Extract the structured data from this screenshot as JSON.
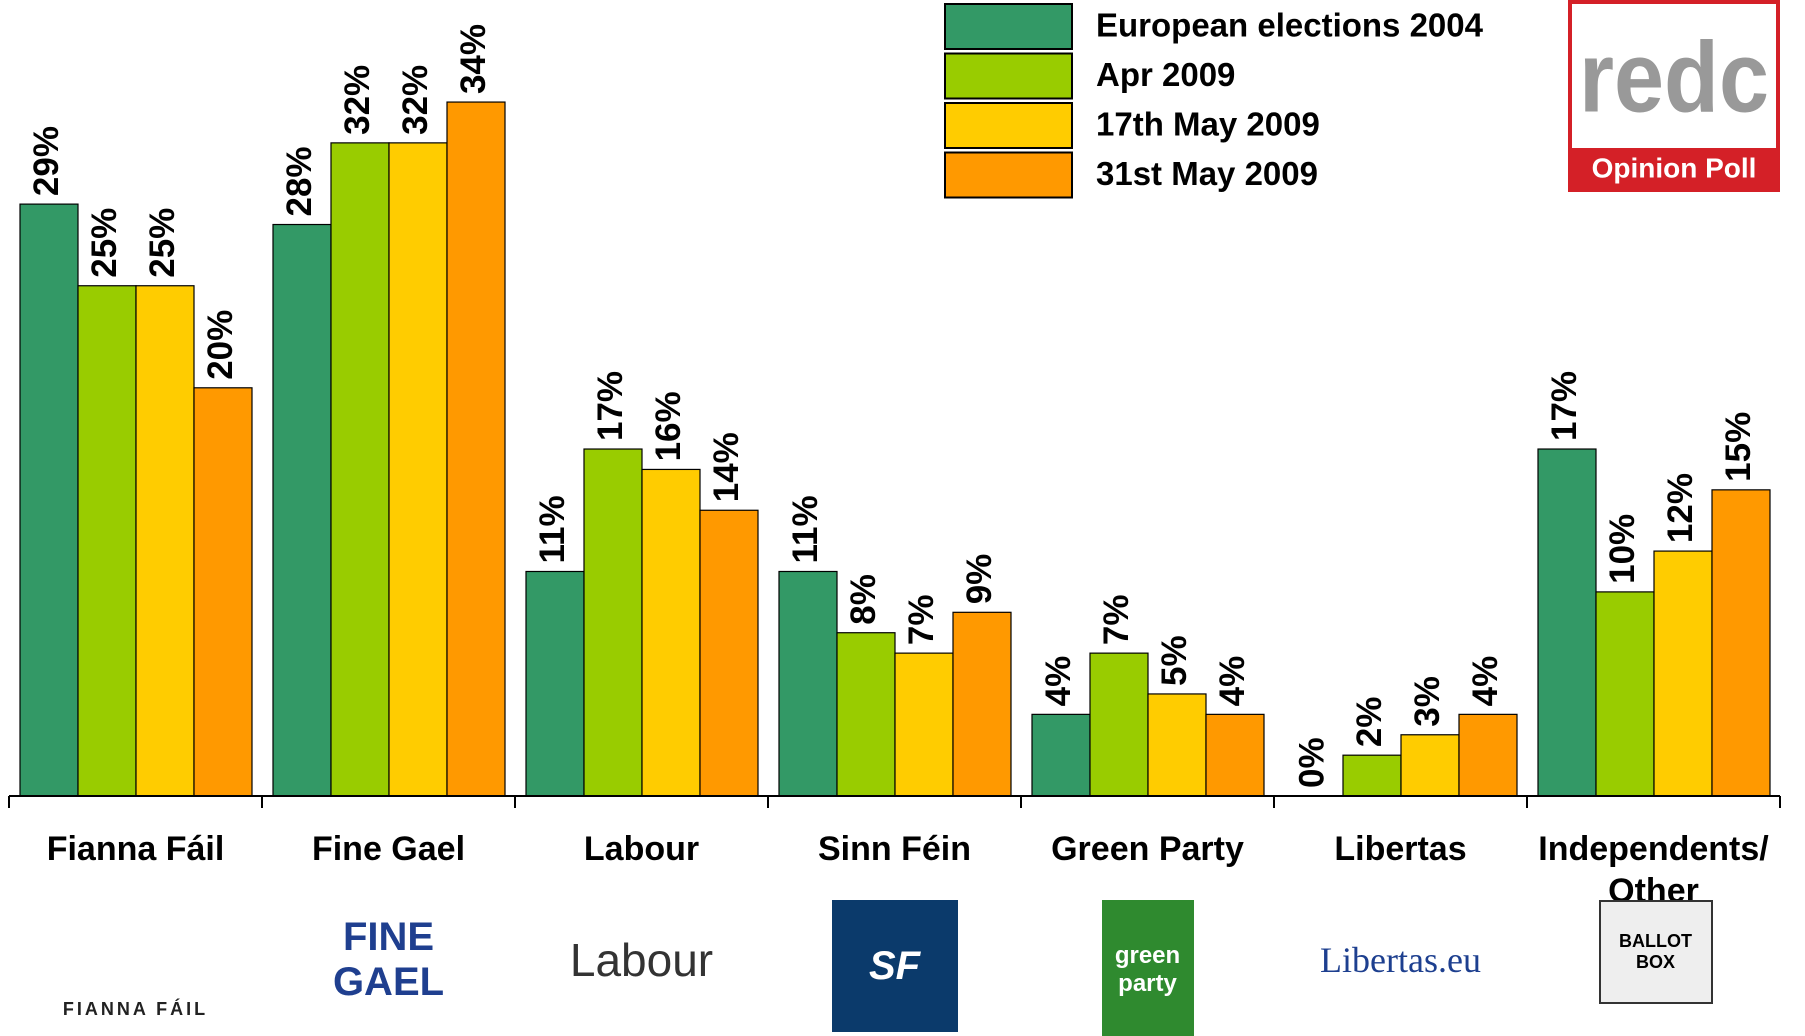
{
  "chart_data": {
    "type": "bar",
    "categories": [
      "Fianna Fáil",
      "Fine Gael",
      "Labour",
      "Sinn Féin",
      "Green Party",
      "Libertas",
      "Independents/ Other"
    ],
    "series": [
      {
        "name": "European elections 2004",
        "color": "#339966",
        "values": [
          29,
          28,
          11,
          11,
          4,
          0,
          17
        ],
        "value_labels": [
          "29%",
          "28%",
          "11%",
          "11%",
          "4%",
          "0%",
          "17%"
        ]
      },
      {
        "name": "Apr 2009",
        "color": "#99cc00",
        "values": [
          25,
          32,
          17,
          8,
          7,
          2,
          10
        ],
        "value_labels": [
          "25%",
          "32%",
          "17%",
          "8%",
          "7%",
          "2%",
          "10%"
        ]
      },
      {
        "name": "17th May 2009",
        "color": "#ffcc00",
        "values": [
          25,
          32,
          16,
          7,
          5,
          3,
          12
        ],
        "value_labels": [
          "25%",
          "32%",
          "16%",
          "7%",
          "5%",
          "3%",
          "12%"
        ]
      },
      {
        "name": "31st May 2009",
        "color": "#ff9900",
        "values": [
          20,
          34,
          14,
          9,
          4,
          4,
          15
        ],
        "value_labels": [
          "20%",
          "34%",
          "14%",
          "9%",
          "4%",
          "4%",
          "15%"
        ]
      }
    ],
    "ylim": [
      0,
      39
    ],
    "legend": "top-right"
  },
  "brand": {
    "name": "redc",
    "tagline": "Opinion Poll"
  },
  "logos": [
    "FIANNA FÁIL",
    "FINE GAEL",
    "Labour",
    "SF",
    "green party",
    "Libertas.eu",
    "BALLOT BOX"
  ]
}
